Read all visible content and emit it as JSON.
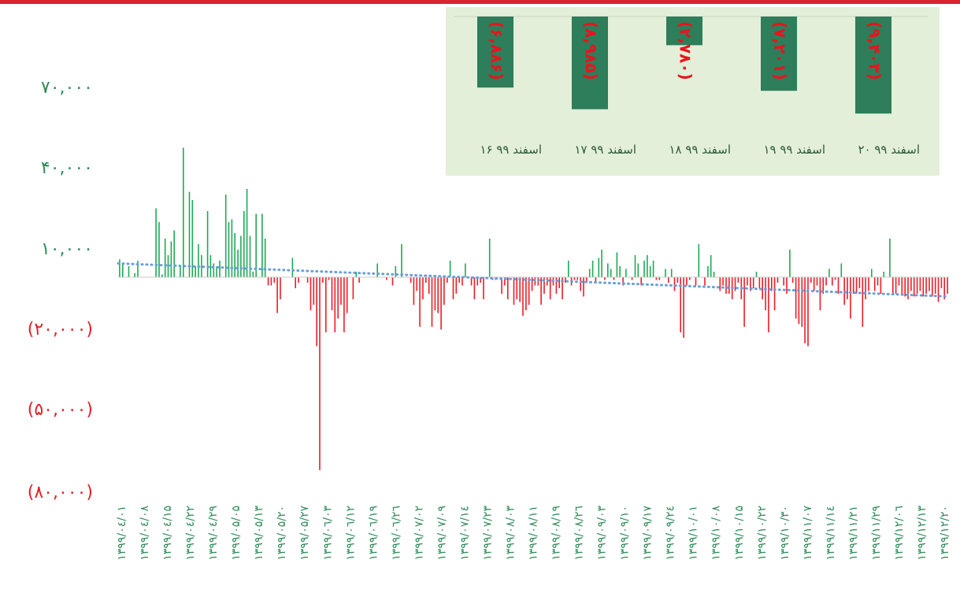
{
  "colors": {
    "positive": "#1eaa55",
    "negative": "#ee1c25",
    "trend": "#6a9fd8",
    "axis_positive": "#2e8b57",
    "axis_negative": "#e41e26",
    "inset_bg": "#e3efd9",
    "inset_bar": "#2e7d5b",
    "inset_label": "#e8141c",
    "inset_text": "#2f5a3c",
    "top_bar": "#d9232e"
  },
  "chart_data": [
    {
      "type": "bar",
      "title": "",
      "xlabel": "",
      "ylabel": "",
      "ylim": [
        -80000,
        70000
      ],
      "grid": false,
      "trendline": {
        "style": "dotted",
        "start": 5000,
        "end": -7000
      },
      "y_ticks": [
        {
          "value": 70000,
          "label": "۷۰,۰۰۰"
        },
        {
          "value": 40000,
          "label": "۴۰,۰۰۰"
        },
        {
          "value": 10000,
          "label": "۱۰,۰۰۰"
        },
        {
          "value": -20000,
          "label": "(۲۰,۰۰۰)"
        },
        {
          "value": -50000,
          "label": "(۵۰,۰۰۰)"
        },
        {
          "value": -80000,
          "label": "(۸۰,۰۰۰)"
        }
      ],
      "x_tick_labels": [
        "۱۳۹۹/۰٤/۰۱",
        "۱۳۹۹/۰٤/۰۸",
        "۱۳۹۹/۰٤/۱۵",
        "۱۳۹۹/۰٤/۲۲",
        "۱۳۹۹/۰٤/۲۹",
        "۱۳۹۹/۰۵/۰۵",
        "۱۳۹۹/۰۵/۱۳",
        "۱۳۹۹/۰۵/۲۰",
        "۱۳۹۹/۰۵/۲۷",
        "۱۳۹۹/۰٦/۰۳",
        "۱۳۹۹/۰٦/۱۲",
        "۱۳۹۹/۰٦/۱۹",
        "۱۳۹۹/۰٦/۲٦",
        "۱۳۹۹/۰۷/۰۲",
        "۱۳۹۹/۰۷/۰۹",
        "۱۳۹۹/۰۷/۱٤",
        "۱۳۹۹/۰۷/۲۳",
        "۱۳۹۹/۰۸/۰۳",
        "۱۳۹۹/۰۸/۱۱",
        "۱۳۹۹/۰۸/۱۹",
        "۱۳۹۹/۰۸/۲٦",
        "۱۳۹۹/۰۹/۰۳",
        "۱۳۹۹/۰۹/۱۰",
        "۱۳۹۹/۰۹/۱۷",
        "۱۳۹۹/۰۹/۲٤",
        "۱۳۹۹/۱۰/۰۱",
        "۱۳۹۹/۱۰/۰۸",
        "۱۳۹۹/۱۰/۱۵",
        "۱۳۹۹/۱۰/۲۲",
        "۱۳۹۹/۱۰/۳۰",
        "۱۳۹۹/۱۱/۰۷",
        "۱۳۹۹/۱۱/۱٤",
        "۱۳۹۹/۱۱/۲۱",
        "۱۳۹۹/۱۱/۲۹",
        "۱۳۹۹/۱۲/۰٦",
        "۱۳۹۹/۱۲/۱۳",
        "۱۳۹۹/۱۲/۲۰"
      ],
      "values": [
        6500,
        5000,
        0,
        4000,
        0,
        1500,
        6000,
        0,
        0,
        0,
        0,
        0,
        25000,
        20000,
        1000,
        14000,
        8000,
        13000,
        17000,
        0,
        4000,
        47000,
        0,
        31000,
        28000,
        4000,
        12000,
        8000,
        0,
        24000,
        8000,
        5000,
        4000,
        6000,
        0,
        30000,
        20000,
        21000,
        16000,
        10000,
        15000,
        24000,
        32000,
        15000,
        2000,
        23000,
        0,
        23000,
        14000,
        -3000,
        -3000,
        -2000,
        -13000,
        -8000,
        0,
        0,
        0,
        7000,
        -4000,
        -2000,
        0,
        0,
        -2000,
        -12000,
        -10000,
        -25000,
        -70000,
        -2000,
        -20000,
        -1000,
        -12000,
        -20000,
        -15000,
        -10000,
        -20000,
        -13000,
        0,
        -8000,
        2000,
        -2000,
        0,
        0,
        0,
        0,
        0,
        5000,
        0,
        0,
        -1000,
        0,
        -3000,
        4000,
        0,
        12000,
        0,
        0,
        -2000,
        -10000,
        -5000,
        -18000,
        -8000,
        -2000,
        -6000,
        -18000,
        -12000,
        -13000,
        -19000,
        -10000,
        -2000,
        6000,
        -8000,
        -6000,
        -2000,
        -3000,
        5000,
        0,
        -3000,
        -8000,
        -3000,
        -2000,
        -8000,
        0,
        14000,
        -1000,
        -1000,
        0,
        -6000,
        -3000,
        -8000,
        0,
        -10000,
        -8000,
        -9000,
        -14000,
        -12000,
        -10000,
        -5000,
        -3000,
        -3000,
        -10000,
        -6000,
        -3000,
        -8000,
        -3000,
        -6000,
        -4000,
        -8000,
        -2000,
        6000,
        -3000,
        -1000,
        -1000,
        -5000,
        -7000,
        -2000,
        3000,
        6000,
        -2000,
        7000,
        10000,
        -1000,
        5000,
        3000,
        -1000,
        9000,
        4000,
        -3000,
        3000,
        0,
        -1000,
        8000,
        5000,
        -3000,
        6000,
        8000,
        4000,
        6000,
        -1000,
        -1000,
        0,
        3000,
        -2000,
        3000,
        -5000,
        -2000,
        -20000,
        -22000,
        -3000,
        -1000,
        0,
        -3000,
        12000,
        0,
        -3000,
        4000,
        8000,
        2000,
        0,
        -5000,
        -3000,
        -6000,
        -6000,
        -8000,
        -5000,
        -2000,
        -8000,
        -18000,
        -3000,
        -5000,
        -4000,
        2000,
        -4000,
        -8000,
        -12000,
        -20000,
        -5000,
        -12000,
        -2000,
        0,
        -3000,
        -6000,
        10000,
        -2000,
        -15000,
        -17000,
        -18000,
        -24000,
        -25000,
        -2000,
        -5000,
        -3000,
        -12000,
        -6000,
        -3000,
        3000,
        -3000,
        -1000,
        -6000,
        5000,
        -10000,
        -8000,
        -15000,
        -6000,
        -6000,
        -4000,
        -18000,
        -8000,
        -5000,
        3000,
        -5000,
        -3000,
        -6000,
        2000,
        0,
        14000,
        -6000,
        -6000,
        -3000,
        -6000,
        -7000,
        -8000,
        -5000,
        -7000,
        -6000,
        -5000,
        -7000,
        -6000,
        -5000,
        -7000,
        -6000,
        -9000,
        -4000,
        -8000,
        -6000
      ]
    },
    {
      "type": "bar",
      "title": "",
      "categories": [
        "۲۰ اسفند ۹۹",
        "۱۹ اسفند ۹۹",
        "۱۸ اسفند ۹۹",
        "۱۷ اسفند ۹۹",
        "۱۶ اسفند ۹۹"
      ],
      "values": [
        -9403,
        -7201,
        -2780,
        -8985,
        -6886
      ],
      "data_labels": [
        "(۹,۴۰۳)",
        "(۷,۲۰۱)",
        "(۲,۷۸۰)",
        "(۸,۹۸۵)",
        "(۶,۸۸۶)"
      ],
      "ylim": [
        -10000,
        0
      ]
    }
  ]
}
